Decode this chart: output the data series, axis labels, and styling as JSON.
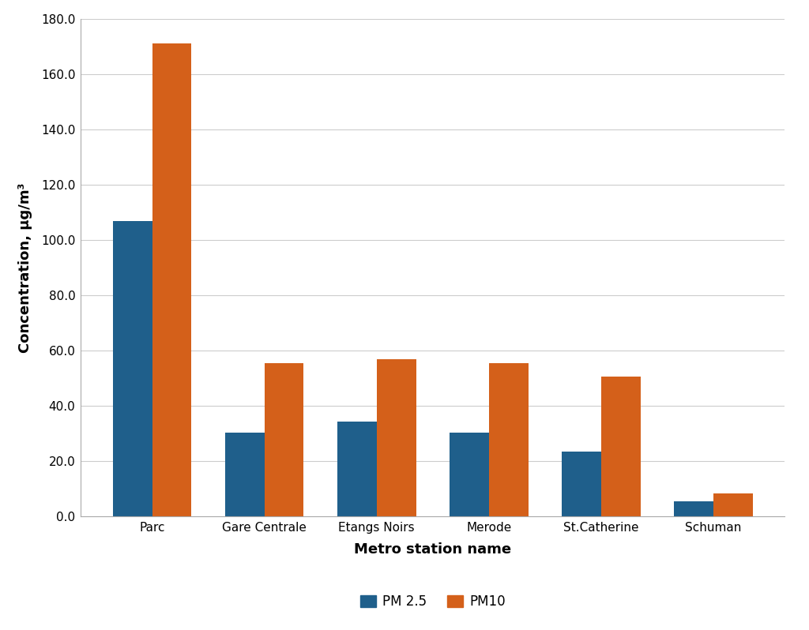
{
  "stations": [
    "Parc",
    "Gare Centrale",
    "Etangs Noirs",
    "Merode",
    "St.Catherine",
    "Schuman"
  ],
  "pm25": [
    107.0,
    30.5,
    34.5,
    30.5,
    23.5,
    5.5
  ],
  "pm10": [
    171.0,
    55.5,
    57.0,
    55.5,
    50.5,
    8.5
  ],
  "pm25_color": "#1f5f8b",
  "pm10_color": "#d4601a",
  "ylabel": "Concentration, μg/m³",
  "xlabel": "Metro station name",
  "ylim": [
    0,
    180.0
  ],
  "yticks": [
    0.0,
    20.0,
    40.0,
    60.0,
    80.0,
    100.0,
    120.0,
    140.0,
    160.0,
    180.0
  ],
  "legend_pm25": "PM 2.5",
  "legend_pm10": "PM10",
  "bar_width": 0.35,
  "background_color": "#ffffff",
  "plot_bg_color": "#ffffff",
  "grid_color": "#cccccc",
  "axis_label_fontsize": 13,
  "tick_fontsize": 11,
  "legend_fontsize": 12
}
